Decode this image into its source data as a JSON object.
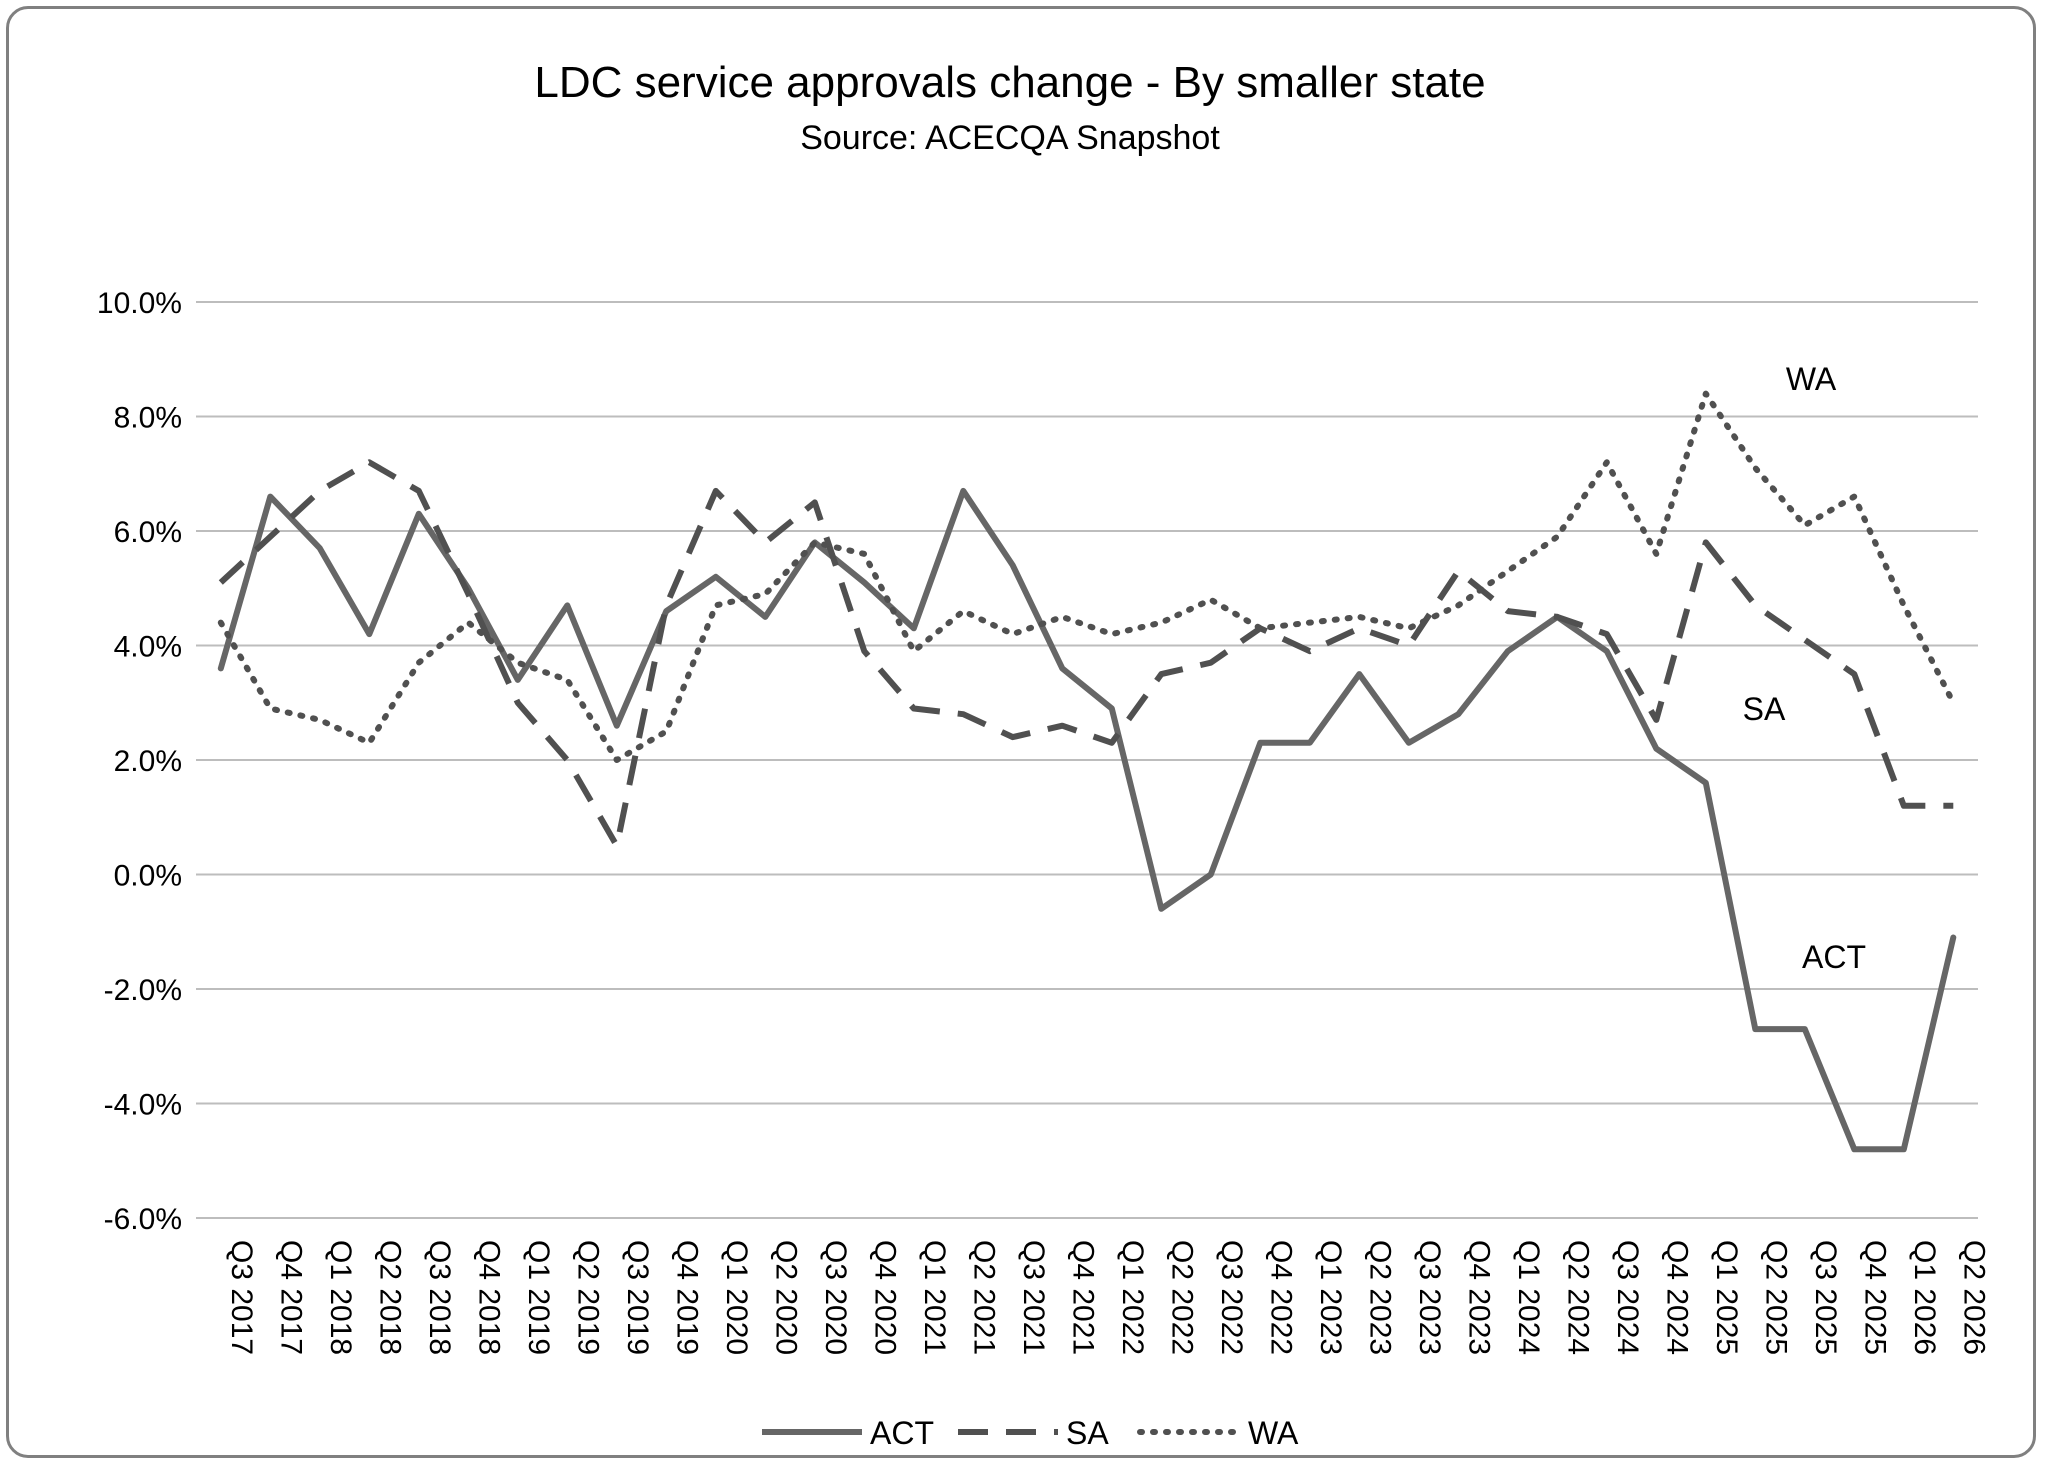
{
  "chart_data": {
    "type": "line",
    "title": "LDC service approvals change - By smaller state",
    "subtitle": "Source: ACECQA Snapshot",
    "xlabel": "",
    "ylabel": "",
    "ylim": [
      -6,
      10
    ],
    "y_ticks": [
      "10.0%",
      "8.0%",
      "6.0%",
      "4.0%",
      "2.0%",
      "0.0%",
      "-2.0%",
      "-4.0%",
      "-6.0%"
    ],
    "grid": "horizontal",
    "legend_position": "bottom",
    "categories": [
      "Q3 2017",
      "Q4 2017",
      "Q1 2018",
      "Q2 2018",
      "Q3 2018",
      "Q4 2018",
      "Q1 2019",
      "Q2 2019",
      "Q3 2019",
      "Q4 2019",
      "Q1 2020",
      "Q2 2020",
      "Q3 2020",
      "Q4 2020",
      "Q1 2021",
      "Q2 2021",
      "Q3 2021",
      "Q4 2021",
      "Q1 2022",
      "Q2 2022",
      "Q3 2022",
      "Q4 2022",
      "Q1 2023",
      "Q2 2023",
      "Q3 2023",
      "Q4 2023",
      "Q1 2024",
      "Q2 2024",
      "Q3 2024",
      "Q4 2024",
      "Q1 2025",
      "Q2 2025",
      "Q3 2025",
      "Q4 2025",
      "Q1 2026",
      "Q2 2026"
    ],
    "series": [
      {
        "name": "ACT",
        "style": "solid",
        "color": "#666666",
        "values": [
          3.6,
          6.6,
          5.7,
          4.2,
          6.3,
          5.0,
          3.4,
          4.7,
          2.6,
          4.6,
          5.2,
          4.5,
          5.8,
          5.1,
          4.3,
          6.7,
          5.4,
          3.6,
          2.9,
          -0.6,
          0.0,
          2.3,
          2.3,
          3.5,
          2.3,
          2.8,
          3.9,
          4.5,
          3.9,
          2.2,
          1.6,
          -2.7,
          -2.7,
          -4.8,
          -4.8,
          -1.1
        ]
      },
      {
        "name": "SA",
        "style": "dashed",
        "color": "#505050",
        "values": [
          5.1,
          5.9,
          6.7,
          7.2,
          6.7,
          4.9,
          3.0,
          2.0,
          0.5,
          4.7,
          6.7,
          5.8,
          6.5,
          3.9,
          2.9,
          2.8,
          2.4,
          2.6,
          2.3,
          3.5,
          3.7,
          4.3,
          3.9,
          4.3,
          4.0,
          5.3,
          4.6,
          4.5,
          4.2,
          2.7,
          5.8,
          4.7,
          4.1,
          3.5,
          1.2,
          1.2
        ]
      },
      {
        "name": "WA",
        "style": "dotted",
        "color": "#505050",
        "values": [
          4.4,
          2.9,
          2.7,
          2.3,
          3.7,
          4.4,
          3.7,
          3.4,
          2.0,
          2.5,
          4.7,
          4.9,
          5.8,
          5.6,
          3.9,
          4.6,
          4.2,
          4.5,
          4.2,
          4.4,
          4.8,
          4.3,
          4.4,
          4.5,
          4.3,
          4.7,
          5.3,
          5.9,
          7.2,
          5.6,
          8.4,
          7.1,
          6.1,
          6.6,
          4.7,
          3.0
        ]
      }
    ],
    "annotations": [
      {
        "text": "WA",
        "series": "WA"
      },
      {
        "text": "SA",
        "series": "SA"
      },
      {
        "text": "ACT",
        "series": "ACT"
      }
    ]
  }
}
